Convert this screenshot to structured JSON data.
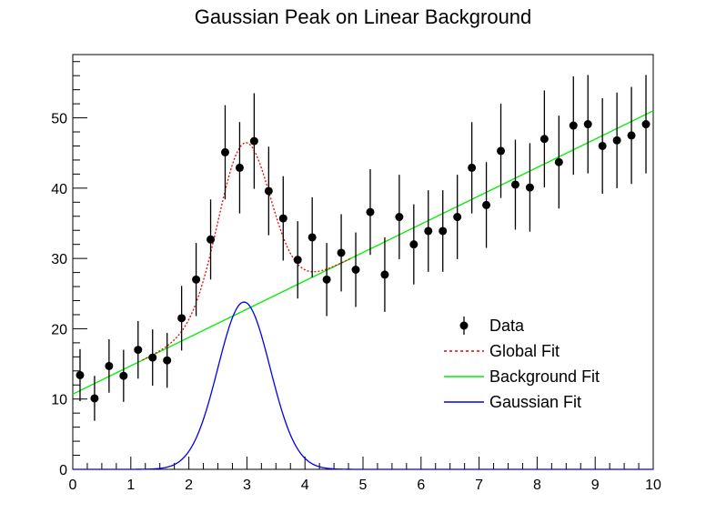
{
  "chart_data": {
    "type": "scatter",
    "title": "Gaussian Peak on Linear Background",
    "xlabel": "",
    "ylabel": "",
    "xlim": [
      0,
      10
    ],
    "ylim": [
      0,
      59
    ],
    "x_ticks": [
      "0",
      "1",
      "2",
      "3",
      "4",
      "5",
      "6",
      "7",
      "8",
      "9",
      "10"
    ],
    "y_ticks": [
      "0",
      "10",
      "20",
      "30",
      "40",
      "50"
    ],
    "grid": false,
    "legend_placement": "lower-right",
    "data": {
      "name": "Data",
      "color": "#000000",
      "points": [
        {
          "x": 0.125,
          "y": 13.4,
          "err": 3.7
        },
        {
          "x": 0.375,
          "y": 10.1,
          "err": 3.2
        },
        {
          "x": 0.625,
          "y": 14.7,
          "err": 3.8
        },
        {
          "x": 0.875,
          "y": 13.3,
          "err": 3.7
        },
        {
          "x": 1.125,
          "y": 17.0,
          "err": 4.1
        },
        {
          "x": 1.375,
          "y": 15.9,
          "err": 4.0
        },
        {
          "x": 1.625,
          "y": 15.5,
          "err": 3.9
        },
        {
          "x": 1.875,
          "y": 21.5,
          "err": 4.6
        },
        {
          "x": 2.125,
          "y": 27.0,
          "err": 5.2
        },
        {
          "x": 2.375,
          "y": 32.7,
          "err": 5.7
        },
        {
          "x": 2.625,
          "y": 45.1,
          "err": 6.7
        },
        {
          "x": 2.875,
          "y": 42.9,
          "err": 6.5
        },
        {
          "x": 3.125,
          "y": 46.7,
          "err": 6.8
        },
        {
          "x": 3.375,
          "y": 39.6,
          "err": 6.3
        },
        {
          "x": 3.625,
          "y": 35.7,
          "err": 6.0
        },
        {
          "x": 3.875,
          "y": 29.8,
          "err": 5.5
        },
        {
          "x": 4.125,
          "y": 33.0,
          "err": 5.7
        },
        {
          "x": 4.375,
          "y": 27.0,
          "err": 5.2
        },
        {
          "x": 4.625,
          "y": 30.8,
          "err": 5.5
        },
        {
          "x": 4.875,
          "y": 28.4,
          "err": 5.3
        },
        {
          "x": 5.125,
          "y": 36.6,
          "err": 6.1
        },
        {
          "x": 5.375,
          "y": 27.7,
          "err": 5.3
        },
        {
          "x": 5.625,
          "y": 35.9,
          "err": 6.0
        },
        {
          "x": 5.875,
          "y": 32.0,
          "err": 5.7
        },
        {
          "x": 6.125,
          "y": 33.9,
          "err": 5.8
        },
        {
          "x": 6.375,
          "y": 33.9,
          "err": 5.8
        },
        {
          "x": 6.625,
          "y": 35.9,
          "err": 6.0
        },
        {
          "x": 6.875,
          "y": 42.9,
          "err": 6.5
        },
        {
          "x": 7.125,
          "y": 37.6,
          "err": 6.1
        },
        {
          "x": 7.375,
          "y": 45.3,
          "err": 6.7
        },
        {
          "x": 7.625,
          "y": 40.5,
          "err": 6.4
        },
        {
          "x": 7.875,
          "y": 40.1,
          "err": 6.3
        },
        {
          "x": 8.125,
          "y": 47.0,
          "err": 6.9
        },
        {
          "x": 8.375,
          "y": 43.7,
          "err": 6.6
        },
        {
          "x": 8.625,
          "y": 48.9,
          "err": 7.0
        },
        {
          "x": 8.875,
          "y": 49.1,
          "err": 7.0
        },
        {
          "x": 9.125,
          "y": 46.0,
          "err": 6.8
        },
        {
          "x": 9.375,
          "y": 46.8,
          "err": 6.8
        },
        {
          "x": 9.625,
          "y": 47.5,
          "err": 6.9
        },
        {
          "x": 9.875,
          "y": 49.1,
          "err": 7.0
        }
      ]
    },
    "background_fit": {
      "name": "Background Fit",
      "color": "#00ee00",
      "line_style": "solid",
      "intercept": 10.7,
      "slope": 4.03
    },
    "gaussian_fit": {
      "name": "Gaussian Fit",
      "color": "#0000ee",
      "line_style": "solid",
      "amplitude": 23.8,
      "mean": 2.95,
      "sigma": 0.45
    },
    "global_fit": {
      "name": "Global Fit",
      "color": "#ee0000",
      "line_style": "dotted"
    },
    "legend": [
      "Data",
      "Global Fit",
      "Background Fit",
      "Gaussian Fit"
    ]
  }
}
